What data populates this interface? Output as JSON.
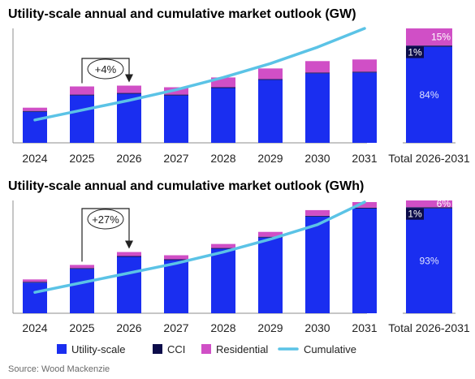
{
  "source": "Source: Wood Mackenzie",
  "colors": {
    "utility": "#1a2ef0",
    "cci": "#0c0c4a",
    "residential": "#d04fc6",
    "cumulative": "#5bc3e6",
    "axis": "#8c8c8c"
  },
  "legend": [
    {
      "key": "utility",
      "label": "Utility-scale"
    },
    {
      "key": "cci",
      "label": "CCI"
    },
    {
      "key": "residential",
      "label": "Residential"
    },
    {
      "key": "cumulative",
      "label": "Cumulative"
    }
  ],
  "chart_data": [
    {
      "type": "bar",
      "stacked": true,
      "title": "Utility-scale annual and cumulative market outlook (GW)",
      "categories": [
        "2024",
        "2025",
        "2026",
        "2027",
        "2028",
        "2029",
        "2030",
        "2031"
      ],
      "series": [
        {
          "name": "Utility-scale",
          "key": "utility",
          "values": [
            38,
            58,
            60,
            58,
            67,
            77,
            85,
            86
          ]
        },
        {
          "name": "CCI",
          "key": "cci",
          "values": [
            1,
            1,
            1,
            1,
            1,
            1,
            1,
            1
          ]
        },
        {
          "name": "Residential",
          "key": "residential",
          "values": [
            4,
            10,
            9,
            9,
            12,
            13,
            14,
            15
          ]
        }
      ],
      "cumulative": [
        28,
        40,
        52,
        65,
        80,
        97,
        117,
        140
      ],
      "ylim": [
        0,
        140
      ],
      "annotation": {
        "text": "+4%",
        "from": "2025",
        "to": "2026"
      },
      "total": {
        "label": "Total 2026-2031",
        "shares": [
          {
            "key": "utility",
            "value": 84,
            "text": "84%"
          },
          {
            "key": "cci",
            "value": 1,
            "text": "1%"
          },
          {
            "key": "residential",
            "value": 15,
            "text": "15%"
          }
        ]
      }
    },
    {
      "type": "bar",
      "stacked": true,
      "title": "Utility-scale annual and cumulative market outlook (GWh)",
      "categories": [
        "2024",
        "2025",
        "2026",
        "2027",
        "2028",
        "2029",
        "2030",
        "2031"
      ],
      "series": [
        {
          "name": "Utility-scale",
          "key": "utility",
          "values": [
            38,
            55,
            70,
            66,
            80,
            94,
            120,
            130
          ]
        },
        {
          "name": "CCI",
          "key": "cci",
          "values": [
            1,
            1,
            1,
            1,
            1,
            1,
            1,
            1
          ]
        },
        {
          "name": "Residential",
          "key": "residential",
          "values": [
            3,
            4,
            5,
            5,
            5,
            6,
            7,
            7
          ]
        }
      ],
      "cumulative": [
        26,
        38,
        50,
        62,
        76,
        92,
        110,
        138
      ],
      "ylim": [
        0,
        140
      ],
      "annotation": {
        "text": "+27%",
        "from": "2025",
        "to": "2026"
      },
      "total": {
        "label": "Total 2026-2031",
        "shares": [
          {
            "key": "utility",
            "value": 93,
            "text": "93%"
          },
          {
            "key": "cci",
            "value": 1,
            "text": "1%"
          },
          {
            "key": "residential",
            "value": 6,
            "text": "6%"
          }
        ]
      }
    }
  ]
}
